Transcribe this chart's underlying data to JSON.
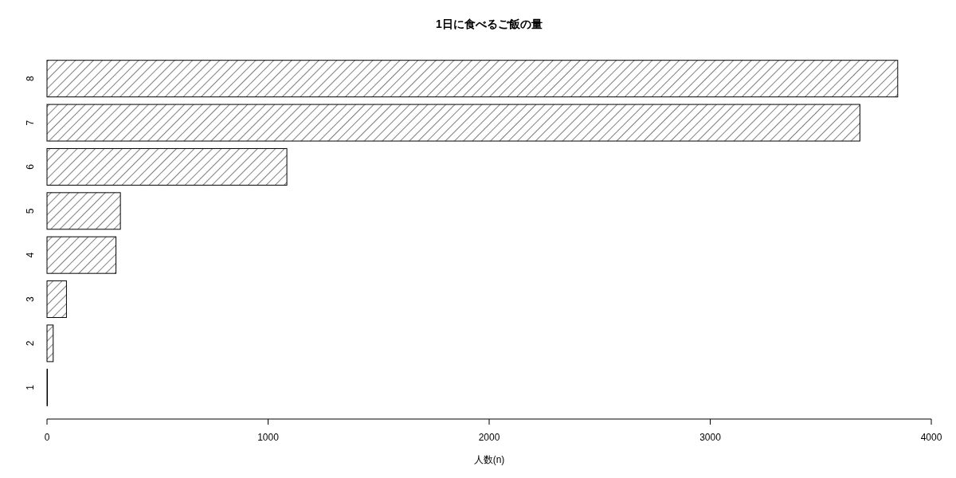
{
  "chart_data": {
    "type": "bar",
    "orientation": "horizontal",
    "title": "1日に食べるご飯の量",
    "xlabel": "人数(n)",
    "categories": [
      "8",
      "7",
      "6",
      "5",
      "4",
      "3",
      "2",
      "1"
    ],
    "values": [
      3848,
      3677,
      1085,
      332,
      312,
      88,
      28,
      2
    ],
    "color": "#000000",
    "xlim": [
      0,
      4000
    ],
    "xticks": [
      0,
      1000,
      2000,
      3000,
      4000
    ]
  }
}
